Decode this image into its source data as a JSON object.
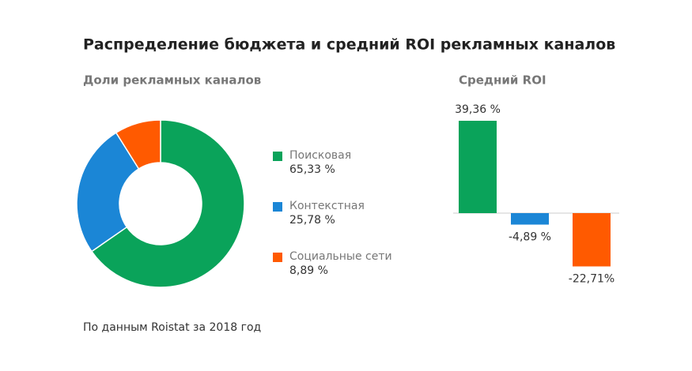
{
  "title": "Распределение бюджета и средний ROI рекламных каналов",
  "source": "По данным Roistat за 2018 год",
  "chart_data": [
    {
      "type": "donut",
      "title": "Доли рекламных каналов",
      "categories": [
        "Поисковая",
        "Контекстная",
        "Социальные сети"
      ],
      "values": [
        65.33,
        25.78,
        8.89
      ],
      "value_labels": [
        "65,33 %",
        "25,78 %",
        "8,89 %"
      ],
      "colors": [
        "#0aa35a",
        "#1b86d6",
        "#ff5a00"
      ]
    },
    {
      "type": "bar",
      "title": "Средний ROI",
      "values": [
        39.36,
        -4.89,
        -22.71
      ],
      "value_labels": [
        "39,36 %",
        "-4,89 %",
        "-22,71%"
      ],
      "colors": [
        "#0aa35a",
        "#1b86d6",
        "#ff5a00"
      ]
    }
  ]
}
